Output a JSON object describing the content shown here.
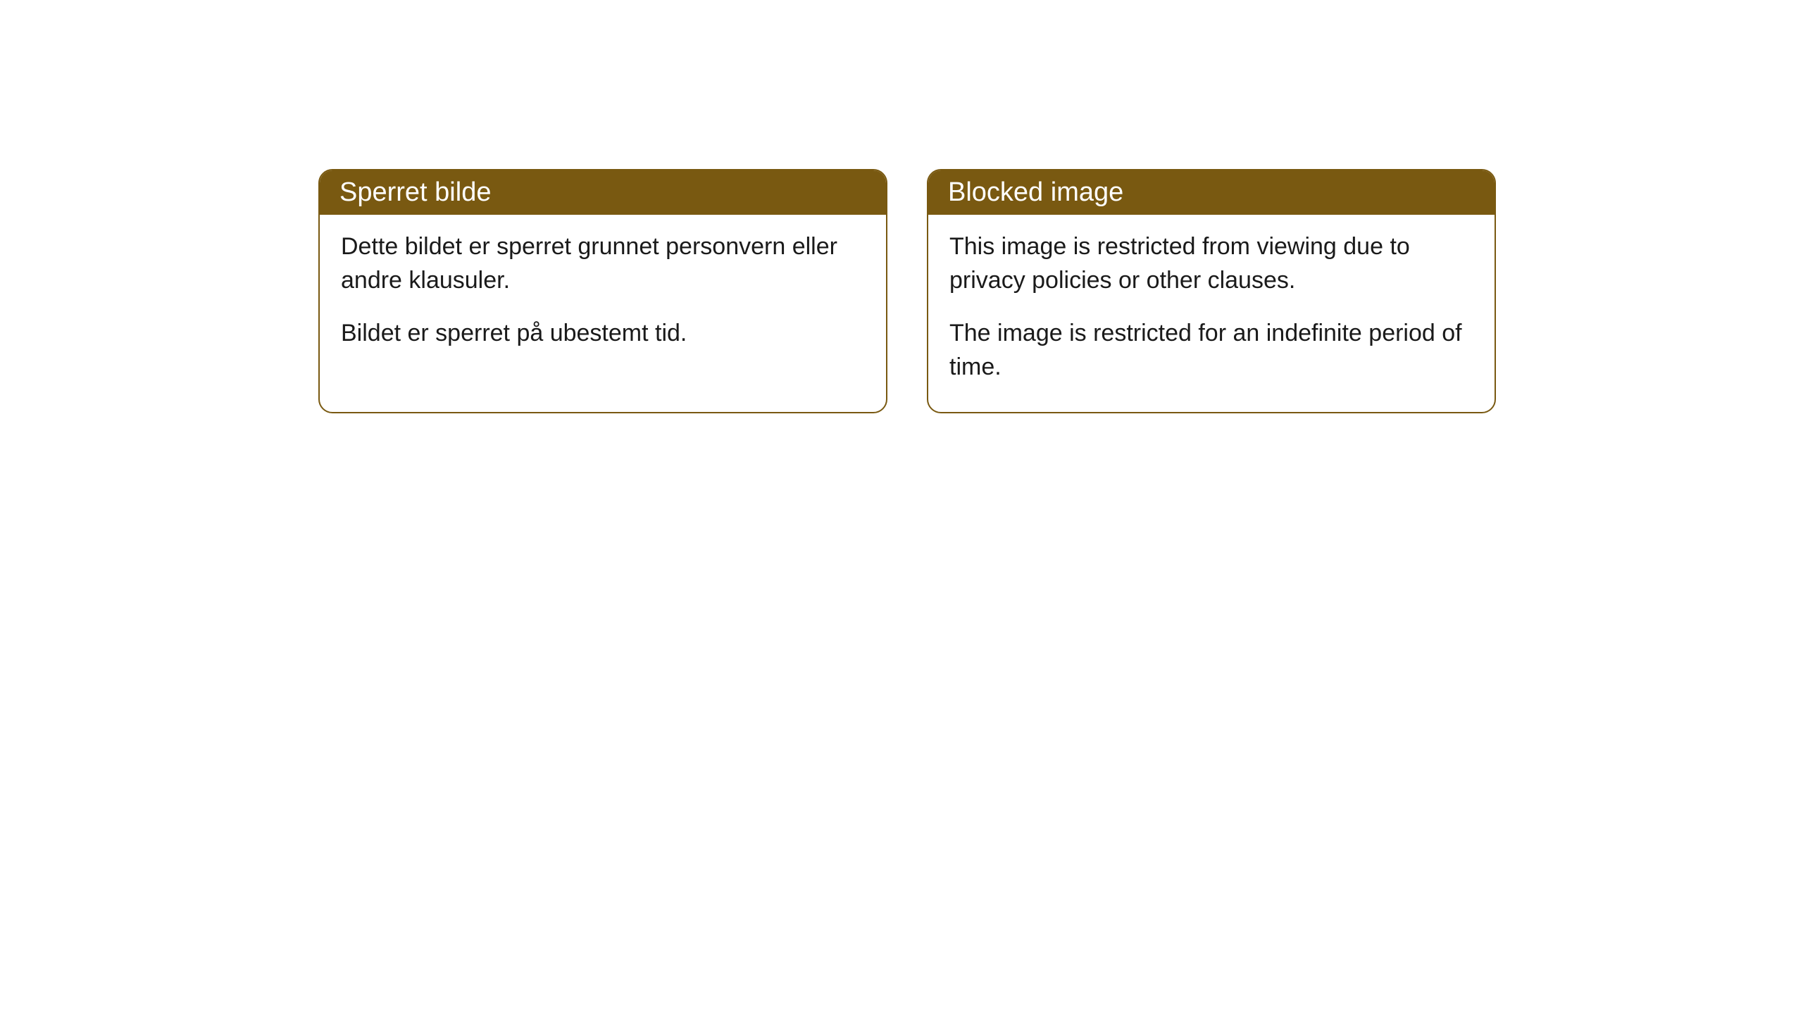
{
  "cards": [
    {
      "title": "Sperret bilde",
      "paragraph1": "Dette bildet er sperret grunnet personvern eller andre klausuler.",
      "paragraph2": "Bildet er sperret på ubestemt tid."
    },
    {
      "title": "Blocked image",
      "paragraph1": "This image is restricted from viewing due to privacy policies or other clauses.",
      "paragraph2": "The image is restricted for an indefinite period of time."
    }
  ],
  "style": {
    "card_border_color": "#795911",
    "card_header_bg": "#795911",
    "card_header_text_color": "#ffffff",
    "card_body_bg": "#ffffff",
    "body_text_color": "#1a1a1a",
    "border_radius": "20px",
    "header_fontsize": "38px",
    "body_fontsize": "34px"
  }
}
